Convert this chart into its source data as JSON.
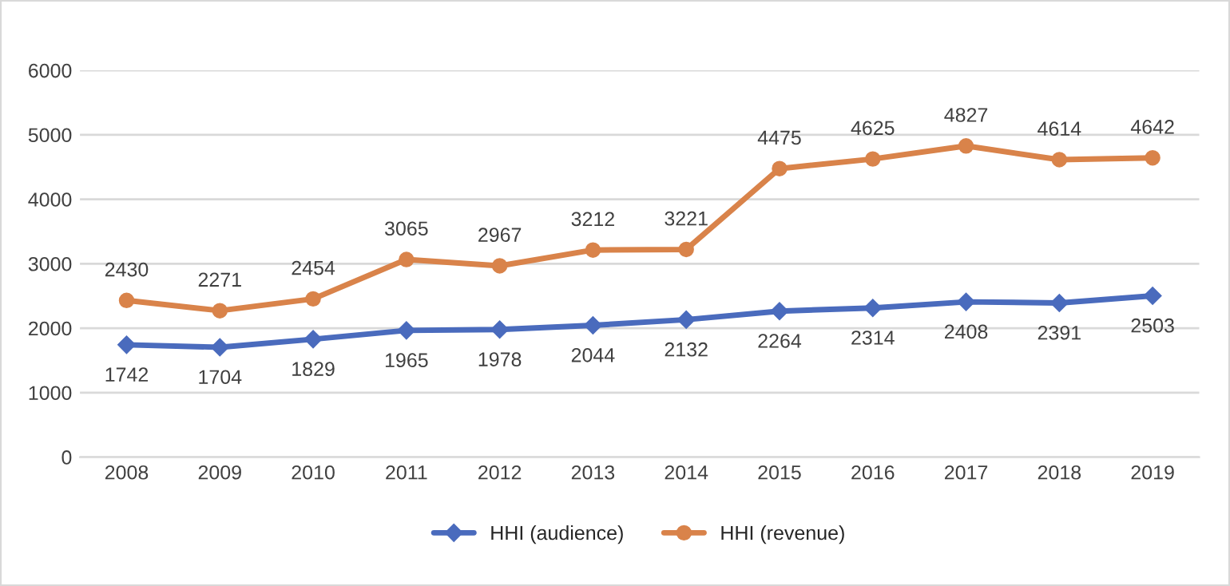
{
  "chart_data": {
    "type": "line",
    "categories": [
      "2008",
      "2009",
      "2010",
      "2011",
      "2012",
      "2013",
      "2014",
      "2015",
      "2016",
      "2017",
      "2018",
      "2019"
    ],
    "series": [
      {
        "name": "HHI (audience)",
        "color": "#4a6bbd",
        "marker": "diamond",
        "values": [
          1742,
          1704,
          1829,
          1965,
          1978,
          2044,
          2132,
          2264,
          2314,
          2408,
          2391,
          2503
        ]
      },
      {
        "name": "HHI (revenue)",
        "color": "#d9834a",
        "marker": "circle",
        "values": [
          2430,
          2271,
          2454,
          3065,
          2967,
          3212,
          3221,
          4475,
          4625,
          4827,
          4614,
          4642
        ]
      }
    ],
    "ylim": [
      0,
      6000
    ],
    "yticks": [
      0,
      1000,
      2000,
      3000,
      4000,
      5000,
      6000
    ],
    "grid": "y",
    "legend": "bottom",
    "data_labels": true,
    "line_style": "solid"
  }
}
